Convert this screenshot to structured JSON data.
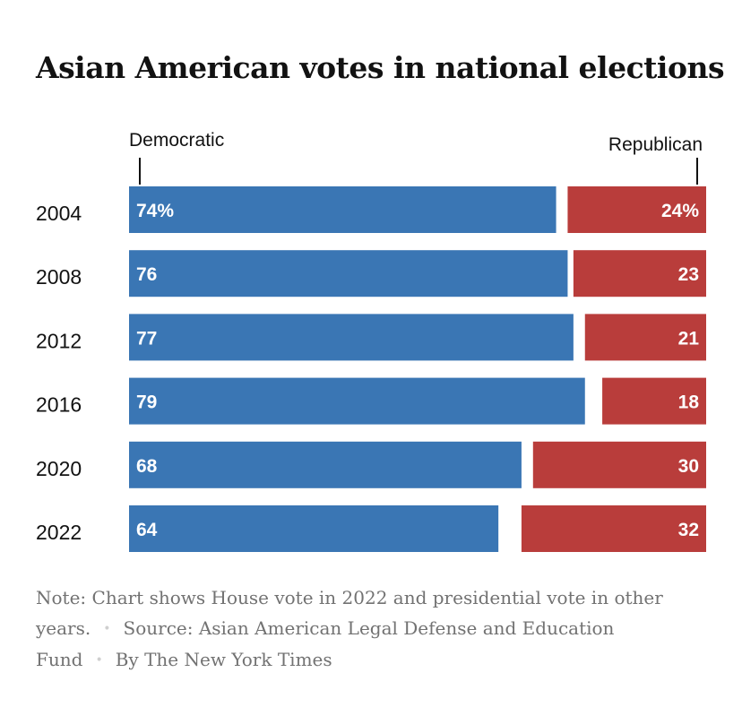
{
  "title": "Asian American votes in national elections",
  "chart_data": {
    "type": "bar",
    "orientation": "horizontal-diverging",
    "categories": [
      "2004",
      "2008",
      "2012",
      "2016",
      "2020",
      "2022"
    ],
    "series": [
      {
        "name": "Democratic",
        "values": [
          74,
          76,
          77,
          79,
          68,
          64
        ],
        "color": "#3a76b4",
        "labels": [
          "74%",
          "76",
          "77",
          "79",
          "68",
          "64"
        ]
      },
      {
        "name": "Republican",
        "values": [
          24,
          23,
          21,
          18,
          30,
          32
        ],
        "color": "#b93d3b",
        "labels": [
          "24%",
          "23",
          "21",
          "18",
          "30",
          "32"
        ]
      }
    ],
    "xlim": [
      0,
      100
    ]
  },
  "note": {
    "text": "Note: Chart shows House vote in 2022 and presidential vote in other years.",
    "source": "Source: Asian American Legal Defense and Education Fund",
    "byline": "By The New York Times",
    "separator": "•"
  }
}
